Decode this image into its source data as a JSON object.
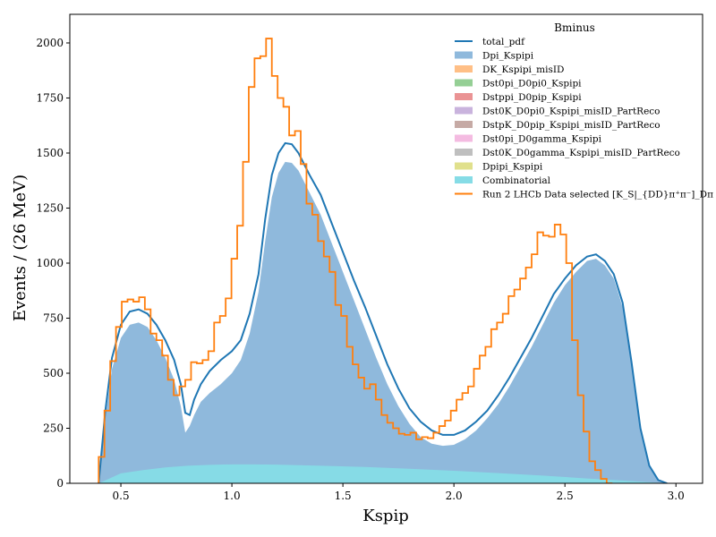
{
  "chart_data": {
    "type": "area",
    "title": "",
    "xlabel": "Kspip",
    "ylabel": "Events / (26 MeV)",
    "xlim": [
      0.27,
      3.12
    ],
    "ylim": [
      0,
      2130
    ],
    "x_ticks": [
      0.5,
      1.0,
      1.5,
      2.0,
      2.5,
      3.0
    ],
    "x_tick_labels": [
      "0.5",
      "1.0",
      "1.5",
      "2.0",
      "2.5",
      "3.0"
    ],
    "y_ticks": [
      0,
      250,
      500,
      750,
      1000,
      1250,
      1500,
      1750,
      2000
    ],
    "y_tick_labels": [
      "0",
      "250",
      "500",
      "750",
      "1000",
      "1250",
      "1500",
      "1750",
      "2000"
    ],
    "grid": false,
    "legend": {
      "title": "Bminus",
      "placement": "top-right",
      "entries": [
        {
          "label": "total_pdf",
          "kind": "line",
          "color": "#1f77b4"
        },
        {
          "label": "Dpi_Kspipi",
          "kind": "patch",
          "color": "#8fb9dc"
        },
        {
          "label": "DK_Kspipi_misID",
          "kind": "patch",
          "color": "#ffbf86"
        },
        {
          "label": "Dst0pi_D0pi0_Kspipi",
          "kind": "patch",
          "color": "#95cf95"
        },
        {
          "label": "Dstppi_D0pip_Kspipi",
          "kind": "patch",
          "color": "#ea9394"
        },
        {
          "label": "Dst0K_D0pi0_Kspipi_misID_PartReco",
          "kind": "patch",
          "color": "#c9b3dd"
        },
        {
          "label": "DstpK_D0pip_Kspipi_misID_PartReco",
          "kind": "patch",
          "color": "#c6aaa5"
        },
        {
          "label": "Dst0pi_D0gamma_Kspipi",
          "kind": "patch",
          "color": "#f4bbe1"
        },
        {
          "label": "Dst0K_D0gamma_Kspipi_misID_PartReco",
          "kind": "patch",
          "color": "#bfbfbf"
        },
        {
          "label": "Dpipi_Kspipi",
          "kind": "patch",
          "color": "#e0e08c"
        },
        {
          "label": "Combinatorial",
          "kind": "patch",
          "color": "#86dce6"
        },
        {
          "label": "Run 2 LHCb Data selected [K_S|_{DD}π⁺π⁻]_Dπ",
          "kind": "step",
          "color": "#ff7f0e"
        }
      ]
    },
    "series": [
      {
        "name": "total_pdf",
        "kind": "line",
        "color": "#1f77b4",
        "x": [
          0.4,
          0.43,
          0.46,
          0.5,
          0.54,
          0.58,
          0.62,
          0.66,
          0.7,
          0.74,
          0.77,
          0.79,
          0.81,
          0.83,
          0.86,
          0.9,
          0.95,
          1.0,
          1.04,
          1.08,
          1.12,
          1.15,
          1.18,
          1.21,
          1.24,
          1.27,
          1.3,
          1.35,
          1.4,
          1.45,
          1.5,
          1.55,
          1.6,
          1.65,
          1.7,
          1.75,
          1.8,
          1.85,
          1.9,
          1.95,
          2.0,
          2.05,
          2.1,
          2.15,
          2.2,
          2.25,
          2.3,
          2.35,
          2.4,
          2.45,
          2.5,
          2.55,
          2.6,
          2.64,
          2.68,
          2.72,
          2.76,
          2.8,
          2.84,
          2.88,
          2.92,
          2.96
        ],
        "values": [
          0,
          330,
          570,
          720,
          780,
          790,
          770,
          720,
          650,
          560,
          450,
          320,
          310,
          380,
          450,
          510,
          560,
          600,
          650,
          770,
          950,
          1200,
          1400,
          1500,
          1545,
          1540,
          1500,
          1400,
          1310,
          1180,
          1050,
          920,
          800,
          670,
          540,
          430,
          340,
          280,
          240,
          220,
          220,
          240,
          280,
          330,
          400,
          480,
          570,
          660,
          760,
          860,
          930,
          990,
          1030,
          1040,
          1010,
          950,
          820,
          550,
          250,
          80,
          15,
          0
        ]
      },
      {
        "name": "Dpi_Kspipi",
        "kind": "area",
        "color": "#8fb9dc",
        "x": [
          0.4,
          0.43,
          0.46,
          0.5,
          0.54,
          0.58,
          0.62,
          0.66,
          0.7,
          0.74,
          0.77,
          0.79,
          0.81,
          0.83,
          0.86,
          0.9,
          0.95,
          1.0,
          1.04,
          1.08,
          1.12,
          1.15,
          1.18,
          1.21,
          1.24,
          1.27,
          1.3,
          1.35,
          1.4,
          1.45,
          1.5,
          1.55,
          1.6,
          1.65,
          1.7,
          1.75,
          1.8,
          1.85,
          1.9,
          1.95,
          2.0,
          2.05,
          2.1,
          2.15,
          2.2,
          2.25,
          2.3,
          2.35,
          2.4,
          2.45,
          2.5,
          2.55,
          2.6,
          2.64,
          2.68,
          2.72,
          2.76,
          2.8,
          2.84,
          2.88,
          2.92,
          2.96
        ],
        "values": [
          0,
          300,
          520,
          660,
          720,
          730,
          710,
          650,
          570,
          470,
          350,
          230,
          260,
          310,
          370,
          410,
          450,
          500,
          560,
          680,
          870,
          1100,
          1300,
          1410,
          1460,
          1455,
          1420,
          1320,
          1220,
          1090,
          960,
          830,
          700,
          570,
          450,
          350,
          270,
          210,
          180,
          170,
          175,
          200,
          240,
          295,
          360,
          440,
          530,
          620,
          720,
          820,
          900,
          960,
          1010,
          1020,
          990,
          930,
          800,
          540,
          245,
          78,
          14,
          0
        ]
      },
      {
        "name": "Combinatorial",
        "kind": "area",
        "color": "#86dce6",
        "x": [
          0.4,
          0.5,
          0.6,
          0.7,
          0.8,
          0.9,
          1.0,
          1.1,
          1.2,
          1.4,
          1.6,
          1.8,
          2.0,
          2.2,
          2.4,
          2.6,
          2.8,
          2.96
        ],
        "values": [
          0,
          45,
          60,
          72,
          80,
          84,
          86,
          86,
          85,
          80,
          74,
          66,
          57,
          46,
          35,
          22,
          10,
          0
        ]
      },
      {
        "name": "Run 2 LHCb Data selected [K_S|_{DD}π⁺π⁻]_Dπ",
        "kind": "step",
        "color": "#ff7f0e",
        "bin_width": 0.026,
        "bin_start": 0.4,
        "values": [
          120,
          330,
          555,
          710,
          825,
          835,
          825,
          845,
          790,
          680,
          650,
          580,
          470,
          400,
          440,
          470,
          550,
          545,
          560,
          600,
          730,
          760,
          840,
          1020,
          1170,
          1460,
          1800,
          1930,
          1940,
          2020,
          1850,
          1750,
          1710,
          1580,
          1600,
          1450,
          1270,
          1220,
          1100,
          1030,
          960,
          810,
          760,
          620,
          540,
          480,
          430,
          450,
          380,
          310,
          275,
          250,
          225,
          220,
          230,
          200,
          210,
          205,
          230,
          260,
          285,
          330,
          380,
          410,
          440,
          520,
          580,
          620,
          700,
          730,
          770,
          850,
          880,
          930,
          980,
          1040,
          1140,
          1125,
          1120,
          1175,
          1130,
          1000,
          650,
          400,
          235,
          100,
          60,
          20,
          0
        ]
      }
    ]
  }
}
